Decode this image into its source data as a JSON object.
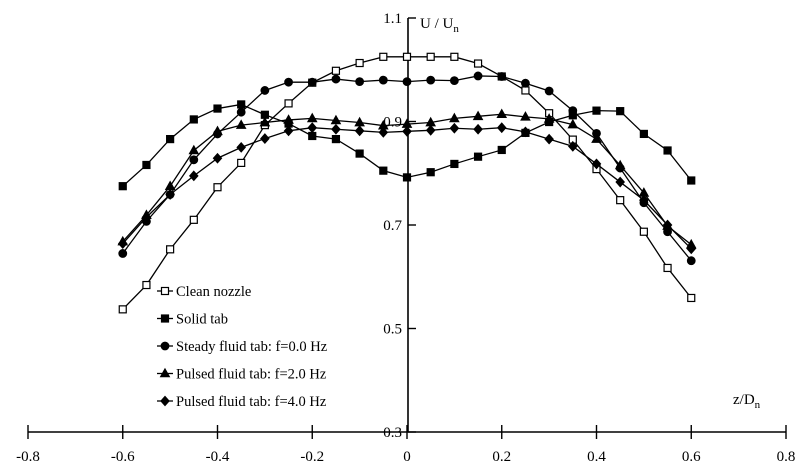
{
  "chart_data": {
    "type": "line",
    "title": "",
    "xlabel": {
      "main": "z/D",
      "sub": "n"
    },
    "ylabel": {
      "main": "U / U",
      "sub": "n"
    },
    "xlim": [
      -0.8,
      0.8
    ],
    "ylim": [
      0.3,
      1.1
    ],
    "x_ticks": [
      {
        "value": -0.8,
        "label": "-0.8"
      },
      {
        "value": -0.6,
        "label": "-0.6"
      },
      {
        "value": -0.4,
        "label": "-0.4"
      },
      {
        "value": -0.2,
        "label": "-0.2"
      },
      {
        "value": 0.0,
        "label": "0"
      },
      {
        "value": 0.2,
        "label": "0.2"
      },
      {
        "value": 0.4,
        "label": "0.4"
      },
      {
        "value": 0.6,
        "label": "0.6"
      },
      {
        "value": 0.8,
        "label": "0.8"
      }
    ],
    "y_ticks": [
      {
        "value": 0.3,
        "label": "0.3"
      },
      {
        "value": 0.5,
        "label": "0.5"
      },
      {
        "value": 0.7,
        "label": "0.7"
      },
      {
        "value": 0.9,
        "label": "0.9"
      },
      {
        "value": 1.1,
        "label": "1.1"
      }
    ],
    "grid": false,
    "legend_position": "bottom-left",
    "x": [
      -0.6,
      -0.55,
      -0.5,
      -0.45,
      -0.4,
      -0.35,
      -0.3,
      -0.25,
      -0.2,
      -0.15,
      -0.1,
      -0.05,
      0.0,
      0.05,
      0.1,
      0.15,
      0.2,
      0.25,
      0.3,
      0.35,
      0.4,
      0.45,
      0.5,
      0.55,
      0.6
    ],
    "series": [
      {
        "name": "Clean nozzle",
        "marker": "square-open",
        "values": [
          0.537,
          0.584,
          0.653,
          0.71,
          0.773,
          0.82,
          0.893,
          0.935,
          0.975,
          0.998,
          1.013,
          1.025,
          1.025,
          1.025,
          1.025,
          1.012,
          0.987,
          0.96,
          0.916,
          0.865,
          0.808,
          0.748,
          0.687,
          0.617,
          0.559
        ]
      },
      {
        "name": "Solid tab",
        "marker": "square-filled",
        "values": [
          0.775,
          0.816,
          0.866,
          0.904,
          0.925,
          0.933,
          0.913,
          0.896,
          0.872,
          0.866,
          0.838,
          0.805,
          0.792,
          0.802,
          0.818,
          0.832,
          0.845,
          0.878,
          0.899,
          0.912,
          0.921,
          0.92,
          0.876,
          0.844,
          0.786
        ]
      },
      {
        "name": "Steady fluid tab: f=0.0 Hz",
        "marker": "circle-filled",
        "values": [
          0.645,
          0.707,
          0.759,
          0.826,
          0.876,
          0.918,
          0.96,
          0.976,
          0.976,
          0.982,
          0.977,
          0.98,
          0.977,
          0.98,
          0.979,
          0.988,
          0.987,
          0.974,
          0.959,
          0.921,
          0.877,
          0.81,
          0.743,
          0.687,
          0.631
        ]
      },
      {
        "name": "Pulsed fluid tab: f=2.0 Hz",
        "marker": "triangle-filled",
        "values": [
          0.668,
          0.719,
          0.775,
          0.844,
          0.881,
          0.893,
          0.898,
          0.903,
          0.906,
          0.902,
          0.898,
          0.892,
          0.895,
          0.898,
          0.906,
          0.91,
          0.914,
          0.909,
          0.905,
          0.894,
          0.866,
          0.815,
          0.762,
          0.698,
          0.662
        ]
      },
      {
        "name": "Pulsed fluid tab: f=4.0 Hz",
        "marker": "diamond-filled",
        "values": [
          0.664,
          0.715,
          0.759,
          0.795,
          0.829,
          0.85,
          0.867,
          0.882,
          0.888,
          0.885,
          0.882,
          0.879,
          0.881,
          0.883,
          0.887,
          0.885,
          0.888,
          0.88,
          0.866,
          0.852,
          0.818,
          0.783,
          0.748,
          0.7,
          0.654
        ]
      }
    ]
  }
}
